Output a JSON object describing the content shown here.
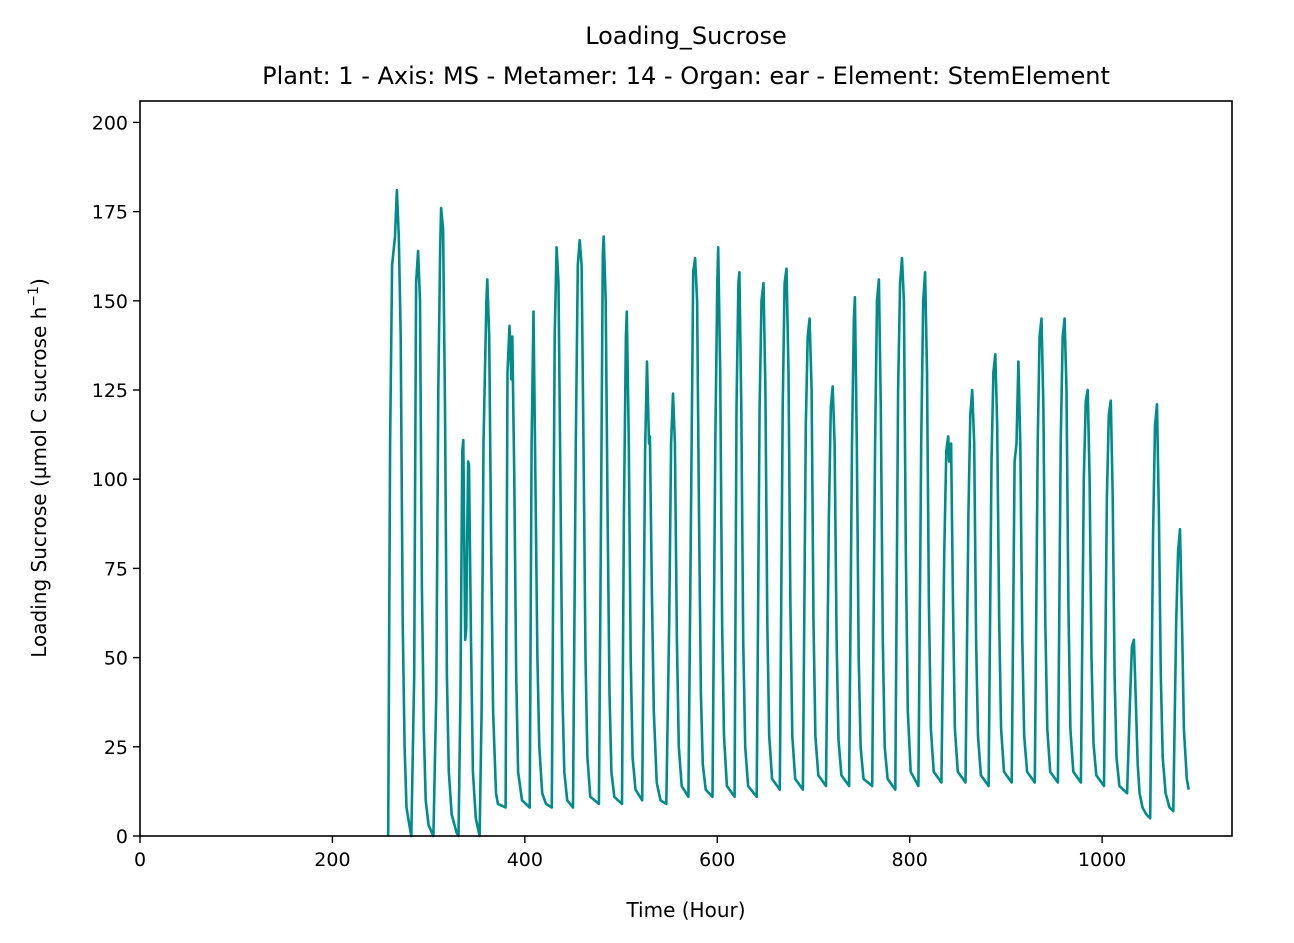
{
  "chart_data": {
    "type": "line",
    "title": "Loading_Sucrose",
    "subtitle": "Plant: 1 - Axis: MS - Metamer: 14 - Organ: ear - Element: StemElement",
    "xlabel": "Time (Hour)",
    "ylabel_main": "Loading Sucrose (µmol C sucrose h",
    "ylabel_sup": "−1",
    "ylabel_end": ")",
    "xlim": [
      0,
      1135
    ],
    "ylim": [
      0,
      206
    ],
    "xticks": [
      0,
      200,
      400,
      600,
      800,
      1000
    ],
    "yticks": [
      0,
      25,
      50,
      75,
      100,
      125,
      150,
      175,
      200
    ],
    "xtick_labels": [
      "0",
      "200",
      "400",
      "600",
      "800",
      "1000"
    ],
    "ytick_labels": [
      "0",
      "25",
      "50",
      "75",
      "100",
      "125",
      "150",
      "175",
      "200"
    ],
    "line_color": "#008b8b",
    "series": [
      {
        "color": "#008b8b",
        "points": [
          [
            258,
            0
          ],
          [
            260,
            110
          ],
          [
            262,
            160
          ],
          [
            265,
            168
          ],
          [
            267,
            181
          ],
          [
            269,
            168
          ],
          [
            271,
            140
          ],
          [
            273,
            60
          ],
          [
            275,
            25
          ],
          [
            277,
            8
          ],
          [
            280,
            3
          ],
          [
            282,
            0
          ],
          [
            285,
            45
          ],
          [
            287,
            155
          ],
          [
            289,
            164
          ],
          [
            291,
            150
          ],
          [
            293,
            70
          ],
          [
            295,
            30
          ],
          [
            297,
            10
          ],
          [
            300,
            3
          ],
          [
            305,
            0
          ],
          [
            308,
            40
          ],
          [
            310,
            125
          ],
          [
            312,
            165
          ],
          [
            313,
            176
          ],
          [
            315,
            170
          ],
          [
            317,
            120
          ],
          [
            319,
            45
          ],
          [
            321,
            18
          ],
          [
            324,
            6
          ],
          [
            329,
            1
          ],
          [
            331,
            0
          ],
          [
            333,
            38
          ],
          [
            335,
            108
          ],
          [
            336,
            111
          ],
          [
            338,
            55
          ],
          [
            339,
            58
          ],
          [
            341,
            105
          ],
          [
            342,
            104
          ],
          [
            344,
            55
          ],
          [
            346,
            18
          ],
          [
            349,
            5
          ],
          [
            353,
            0
          ],
          [
            355,
            35
          ],
          [
            357,
            110
          ],
          [
            360,
            150
          ],
          [
            361,
            156
          ],
          [
            363,
            140
          ],
          [
            365,
            80
          ],
          [
            367,
            35
          ],
          [
            370,
            12
          ],
          [
            372,
            9
          ],
          [
            380,
            8
          ],
          [
            382,
            130
          ],
          [
            384,
            143
          ],
          [
            386,
            128
          ],
          [
            387,
            140
          ],
          [
            389,
            100
          ],
          [
            391,
            45
          ],
          [
            393,
            18
          ],
          [
            397,
            10
          ],
          [
            405,
            8
          ],
          [
            407,
            110
          ],
          [
            409,
            147
          ],
          [
            411,
            100
          ],
          [
            413,
            50
          ],
          [
            415,
            25
          ],
          [
            418,
            12
          ],
          [
            422,
            9
          ],
          [
            428,
            8
          ],
          [
            431,
            140
          ],
          [
            433,
            165
          ],
          [
            435,
            155
          ],
          [
            437,
            100
          ],
          [
            439,
            40
          ],
          [
            441,
            18
          ],
          [
            444,
            10
          ],
          [
            450,
            8
          ],
          [
            453,
            110
          ],
          [
            455,
            160
          ],
          [
            457,
            167
          ],
          [
            459,
            160
          ],
          [
            461,
            110
          ],
          [
            463,
            50
          ],
          [
            465,
            22
          ],
          [
            468,
            11
          ],
          [
            477,
            9
          ],
          [
            479,
            85
          ],
          [
            481,
            163
          ],
          [
            482,
            168
          ],
          [
            484,
            150
          ],
          [
            486,
            90
          ],
          [
            488,
            40
          ],
          [
            490,
            18
          ],
          [
            493,
            11
          ],
          [
            501,
            9
          ],
          [
            503,
            90
          ],
          [
            505,
            140
          ],
          [
            506,
            147
          ],
          [
            508,
            110
          ],
          [
            510,
            50
          ],
          [
            512,
            22
          ],
          [
            515,
            13
          ],
          [
            522,
            10
          ],
          [
            525,
            108
          ],
          [
            527,
            133
          ],
          [
            529,
            110
          ],
          [
            530,
            112
          ],
          [
            532,
            70
          ],
          [
            534,
            35
          ],
          [
            537,
            15
          ],
          [
            541,
            10
          ],
          [
            547,
            9
          ],
          [
            550,
            60
          ],
          [
            552,
            110
          ],
          [
            554,
            124
          ],
          [
            556,
            110
          ],
          [
            558,
            55
          ],
          [
            560,
            25
          ],
          [
            563,
            14
          ],
          [
            570,
            11
          ],
          [
            573,
            100
          ],
          [
            575,
            158
          ],
          [
            577,
            162
          ],
          [
            579,
            150
          ],
          [
            581,
            90
          ],
          [
            583,
            40
          ],
          [
            585,
            20
          ],
          [
            588,
            13
          ],
          [
            595,
            11
          ],
          [
            598,
            110
          ],
          [
            600,
            155
          ],
          [
            601,
            165
          ],
          [
            603,
            130
          ],
          [
            605,
            60
          ],
          [
            607,
            28
          ],
          [
            610,
            14
          ],
          [
            618,
            11
          ],
          [
            620,
            120
          ],
          [
            622,
            155
          ],
          [
            623,
            158
          ],
          [
            625,
            120
          ],
          [
            627,
            55
          ],
          [
            629,
            25
          ],
          [
            632,
            14
          ],
          [
            641,
            11
          ],
          [
            644,
            120
          ],
          [
            646,
            150
          ],
          [
            648,
            155
          ],
          [
            650,
            125
          ],
          [
            652,
            60
          ],
          [
            654,
            28
          ],
          [
            657,
            16
          ],
          [
            665,
            13
          ],
          [
            668,
            120
          ],
          [
            670,
            155
          ],
          [
            672,
            159
          ],
          [
            674,
            130
          ],
          [
            676,
            65
          ],
          [
            678,
            28
          ],
          [
            681,
            16
          ],
          [
            689,
            13
          ],
          [
            692,
            115
          ],
          [
            694,
            140
          ],
          [
            696,
            145
          ],
          [
            698,
            125
          ],
          [
            700,
            60
          ],
          [
            702,
            28
          ],
          [
            705,
            17
          ],
          [
            713,
            14
          ],
          [
            716,
            90
          ],
          [
            718,
            120
          ],
          [
            720,
            126
          ],
          [
            722,
            110
          ],
          [
            724,
            55
          ],
          [
            726,
            27
          ],
          [
            729,
            17
          ],
          [
            737,
            14
          ],
          [
            740,
            110
          ],
          [
            742,
            145
          ],
          [
            743,
            151
          ],
          [
            745,
            110
          ],
          [
            747,
            50
          ],
          [
            749,
            25
          ],
          [
            752,
            16
          ],
          [
            761,
            14
          ],
          [
            764,
            110
          ],
          [
            766,
            150
          ],
          [
            768,
            156
          ],
          [
            770,
            120
          ],
          [
            772,
            55
          ],
          [
            774,
            25
          ],
          [
            777,
            16
          ],
          [
            785,
            13
          ],
          [
            788,
            125
          ],
          [
            790,
            155
          ],
          [
            792,
            162
          ],
          [
            794,
            150
          ],
          [
            796,
            80
          ],
          [
            798,
            35
          ],
          [
            801,
            18
          ],
          [
            809,
            14
          ],
          [
            812,
            110
          ],
          [
            814,
            150
          ],
          [
            816,
            158
          ],
          [
            818,
            130
          ],
          [
            820,
            65
          ],
          [
            822,
            30
          ],
          [
            825,
            18
          ],
          [
            833,
            15
          ],
          [
            836,
            80
          ],
          [
            838,
            108
          ],
          [
            840,
            112
          ],
          [
            841,
            105
          ],
          [
            843,
            110
          ],
          [
            845,
            65
          ],
          [
            847,
            30
          ],
          [
            850,
            18
          ],
          [
            858,
            15
          ],
          [
            861,
            90
          ],
          [
            863,
            118
          ],
          [
            865,
            125
          ],
          [
            867,
            110
          ],
          [
            869,
            55
          ],
          [
            871,
            28
          ],
          [
            874,
            17
          ],
          [
            882,
            14
          ],
          [
            885,
            105
          ],
          [
            887,
            130
          ],
          [
            889,
            135
          ],
          [
            891,
            115
          ],
          [
            893,
            60
          ],
          [
            895,
            30
          ],
          [
            898,
            18
          ],
          [
            906,
            15
          ],
          [
            909,
            105
          ],
          [
            911,
            110
          ],
          [
            913,
            133
          ],
          [
            915,
            110
          ],
          [
            917,
            55
          ],
          [
            919,
            28
          ],
          [
            922,
            18
          ],
          [
            930,
            15
          ],
          [
            933,
            110
          ],
          [
            935,
            140
          ],
          [
            937,
            145
          ],
          [
            939,
            120
          ],
          [
            941,
            60
          ],
          [
            943,
            30
          ],
          [
            946,
            18
          ],
          [
            954,
            15
          ],
          [
            957,
            110
          ],
          [
            959,
            140
          ],
          [
            961,
            145
          ],
          [
            963,
            125
          ],
          [
            965,
            65
          ],
          [
            967,
            30
          ],
          [
            970,
            18
          ],
          [
            978,
            15
          ],
          [
            981,
            100
          ],
          [
            983,
            122
          ],
          [
            985,
            125
          ],
          [
            987,
            100
          ],
          [
            989,
            50
          ],
          [
            991,
            26
          ],
          [
            994,
            17
          ],
          [
            1002,
            14
          ],
          [
            1005,
            95
          ],
          [
            1007,
            118
          ],
          [
            1009,
            122
          ],
          [
            1011,
            95
          ],
          [
            1013,
            45
          ],
          [
            1015,
            22
          ],
          [
            1018,
            14
          ],
          [
            1026,
            12
          ],
          [
            1029,
            38
          ],
          [
            1031,
            53
          ],
          [
            1033,
            55
          ],
          [
            1035,
            38
          ],
          [
            1037,
            20
          ],
          [
            1039,
            12
          ],
          [
            1042,
            8
          ],
          [
            1046,
            6
          ],
          [
            1050,
            5
          ],
          [
            1053,
            85
          ],
          [
            1055,
            115
          ],
          [
            1057,
            121
          ],
          [
            1059,
            90
          ],
          [
            1061,
            45
          ],
          [
            1063,
            22
          ],
          [
            1066,
            12
          ],
          [
            1070,
            8
          ],
          [
            1074,
            7
          ],
          [
            1077,
            60
          ],
          [
            1079,
            80
          ],
          [
            1081,
            86
          ],
          [
            1083,
            60
          ],
          [
            1085,
            30
          ],
          [
            1088,
            16
          ],
          [
            1090,
            13
          ]
        ]
      }
    ]
  }
}
